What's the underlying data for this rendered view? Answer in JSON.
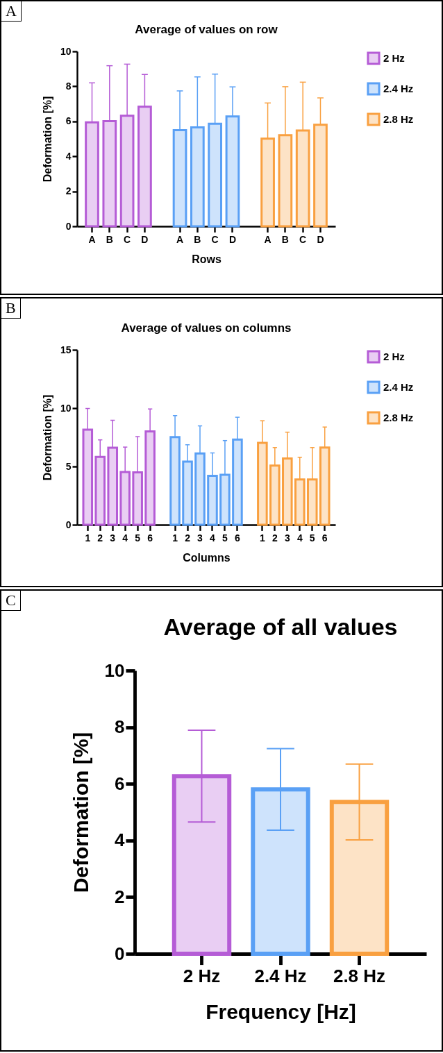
{
  "chart_data": [
    {
      "type": "bar",
      "title": "Average of values on row",
      "xlabel": "Rows",
      "ylabel": "Deformation [%]",
      "annotations": [
        "A"
      ],
      "categories": [
        "A",
        "B",
        "C",
        "D",
        "A",
        "B",
        "C",
        "D",
        "A",
        "B",
        "C",
        "D"
      ],
      "ylim": [
        0,
        10
      ],
      "yticks": [
        0,
        2,
        4,
        6,
        8,
        10
      ],
      "legend": "right",
      "series": [
        {
          "name": "2 Hz",
          "color": "#b55cd6",
          "values": [
            5.94,
            6.01,
            6.32,
            6.84,
            null,
            null,
            null,
            null,
            null,
            null,
            null,
            null
          ],
          "errors": [
            [
              5.94,
              8.2
            ],
            [
              6.01,
              9.18
            ],
            [
              6.32,
              9.27
            ],
            [
              6.84,
              8.68
            ],
            null,
            null,
            null,
            null,
            null,
            null,
            null,
            null
          ]
        },
        {
          "name": "2.4 Hz",
          "color": "#5aa0f5",
          "values": [
            null,
            null,
            null,
            null,
            5.5,
            5.65,
            5.86,
            6.28,
            null,
            null,
            null,
            null
          ],
          "errors": [
            null,
            null,
            null,
            null,
            [
              5.5,
              7.74
            ],
            [
              5.65,
              8.54
            ],
            [
              5.86,
              8.7
            ],
            [
              6.28,
              7.97
            ],
            null,
            null,
            null,
            null
          ]
        },
        {
          "name": "2.8 Hz",
          "color": "#f9a040",
          "values": [
            null,
            null,
            null,
            null,
            null,
            null,
            null,
            null,
            5.01,
            5.21,
            5.48,
            5.8
          ],
          "errors": [
            null,
            null,
            null,
            null,
            null,
            null,
            null,
            null,
            [
              5.01,
              7.05
            ],
            [
              5.21,
              7.98
            ],
            [
              5.48,
              8.24
            ],
            [
              5.8,
              7.34
            ]
          ]
        }
      ]
    },
    {
      "type": "bar",
      "title": "Average of values on columns",
      "xlabel": "Columns",
      "ylabel": "Deformation [%]",
      "annotations": [
        "B"
      ],
      "categories": [
        "1",
        "2",
        "3",
        "4",
        "5",
        "6",
        "1",
        "2",
        "3",
        "4",
        "5",
        "6",
        "1",
        "2",
        "3",
        "4",
        "5",
        "6"
      ],
      "ylim": [
        0,
        15
      ],
      "yticks": [
        0,
        5,
        10,
        15
      ],
      "legend": "right",
      "series": [
        {
          "name": "2 Hz",
          "color": "#b55cd6",
          "values": [
            8.16,
            5.82,
            6.6,
            4.53,
            4.49,
            8.0,
            null,
            null,
            null,
            null,
            null,
            null,
            null,
            null,
            null,
            null,
            null,
            null
          ],
          "errors": [
            [
              8.16,
              9.97
            ],
            [
              5.82,
              7.28
            ],
            [
              6.6,
              8.96
            ],
            [
              4.53,
              6.66
            ],
            [
              4.49,
              7.56
            ],
            [
              8.0,
              9.93
            ],
            null,
            null,
            null,
            null,
            null,
            null,
            null,
            null,
            null,
            null,
            null,
            null
          ]
        },
        {
          "name": "2.4 Hz",
          "color": "#5aa0f5",
          "values": [
            null,
            null,
            null,
            null,
            null,
            null,
            7.52,
            5.41,
            6.12,
            4.19,
            4.29,
            7.3,
            null,
            null,
            null,
            null,
            null,
            null
          ],
          "errors": [
            null,
            null,
            null,
            null,
            null,
            null,
            [
              7.52,
              9.36
            ],
            [
              5.41,
              6.86
            ],
            [
              6.12,
              8.48
            ],
            [
              4.19,
              6.16
            ],
            [
              4.29,
              7.22
            ],
            [
              7.3,
              9.22
            ],
            null,
            null,
            null,
            null,
            null,
            null
          ]
        },
        {
          "name": "2.8 Hz",
          "color": "#f9a040",
          "values": [
            null,
            null,
            null,
            null,
            null,
            null,
            null,
            null,
            null,
            null,
            null,
            null,
            7.02,
            5.07,
            5.69,
            3.89,
            3.89,
            6.62
          ],
          "errors": [
            null,
            null,
            null,
            null,
            null,
            null,
            null,
            null,
            null,
            null,
            null,
            null,
            [
              7.02,
              8.92
            ],
            [
              5.07,
              6.62
            ],
            [
              5.69,
              7.94
            ],
            [
              3.89,
              5.79
            ],
            [
              3.89,
              6.62
            ],
            [
              6.62,
              8.38
            ]
          ]
        }
      ]
    },
    {
      "type": "bar",
      "title": "Average of all values",
      "xlabel": "Frequency [Hz]",
      "ylabel": "Deformation [%]",
      "annotations": [
        "C"
      ],
      "categories": [
        "2 Hz",
        "2.4 Hz",
        "2.8 Hz"
      ],
      "ylim": [
        0,
        10
      ],
      "yticks": [
        0,
        2,
        4,
        6,
        8,
        10
      ],
      "values": [
        6.27,
        5.8,
        5.36
      ],
      "colors": [
        "#b55cd6",
        "#5aa0f5",
        "#f9a040"
      ],
      "errors": [
        1.62,
        1.44,
        1.34
      ]
    }
  ]
}
